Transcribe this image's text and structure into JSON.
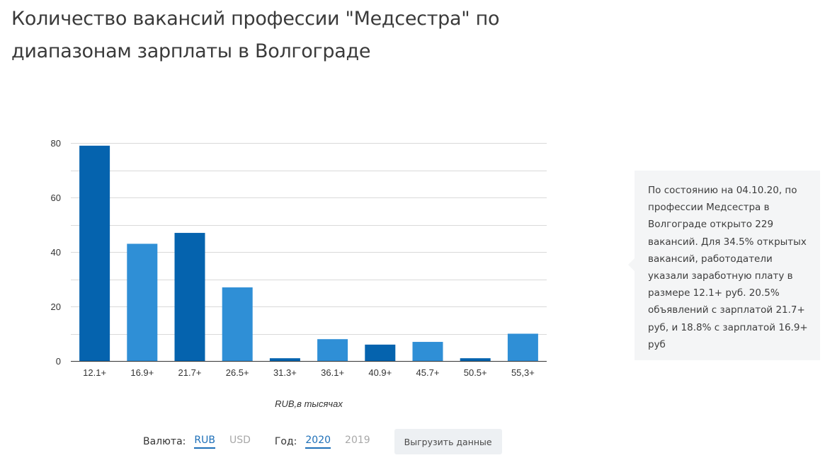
{
  "page": {
    "title": "Количество вакансий профессии \"Медсестра\" по диапазонам зарплаты в Волгограде"
  },
  "chart_data": {
    "type": "bar",
    "categories": [
      "12.1+",
      "16.9+",
      "21.7+",
      "26.5+",
      "31.3+",
      "36.1+",
      "40.9+",
      "45.7+",
      "50.5+",
      "55,3+"
    ],
    "values": [
      79,
      43,
      47,
      27,
      1,
      8,
      6,
      7,
      1,
      10
    ],
    "highlighted": [
      true,
      false,
      true,
      false,
      true,
      false,
      true,
      false,
      true,
      false
    ],
    "colors": {
      "dark": "#0563ae",
      "light": "#2f8fd6"
    },
    "ylim": [
      0,
      80
    ],
    "yticks": [
      0,
      20,
      40,
      60,
      80
    ],
    "xlabel": "RUB,в тысячах",
    "ylabel": "",
    "grid": true,
    "legend": "none"
  },
  "info": {
    "text": "По состоянию на 04.10.20, по профессии Медсестра в Волгограде открыто 229 вакансий. Для 34.5% открытых вакансий, работодатели указали заработную плату в размере 12.1+ руб. 20.5% объявлений с зарплатой 21.7+ руб, и 18.8% с зарплатой 16.9+ руб"
  },
  "controls": {
    "currency_label": "Валюта:",
    "currency_options": [
      "RUB",
      "USD"
    ],
    "currency_selected": "RUB",
    "year_label": "Год:",
    "year_options": [
      "2020",
      "2019"
    ],
    "year_selected": "2020",
    "export_label": "Выгрузить данные"
  }
}
